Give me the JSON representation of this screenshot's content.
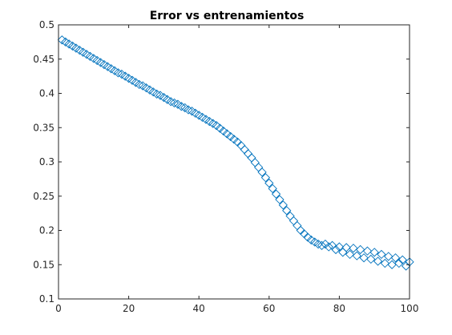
{
  "chart_data": {
    "type": "scatter",
    "title": "Error vs entrenamientos",
    "xlabel": "",
    "ylabel": "",
    "xlim": [
      0,
      100
    ],
    "ylim": [
      0.1,
      0.5
    ],
    "xticks": [
      "0",
      "20",
      "40",
      "60",
      "80",
      "100"
    ],
    "yticks": [
      "0.1",
      "0.15",
      "0.2",
      "0.25",
      "0.3",
      "0.35",
      "0.4",
      "0.45",
      "0.5"
    ],
    "grid": false,
    "marker": "diamond",
    "marker_color": "#0072BD",
    "series": [
      {
        "x": [
          1,
          2,
          3,
          4,
          5,
          6,
          7,
          8,
          9,
          10,
          11,
          12,
          13,
          14,
          15,
          16,
          17,
          18,
          19,
          20,
          21,
          22,
          23,
          24,
          25,
          26,
          27,
          28,
          29,
          30,
          31,
          32,
          33,
          34,
          35,
          36,
          37,
          38,
          39,
          40,
          41,
          42,
          43,
          44,
          45,
          46,
          47,
          48,
          49,
          50,
          51,
          52,
          53,
          54,
          55,
          56,
          57,
          58,
          59,
          60,
          61,
          62,
          63,
          64,
          65,
          66,
          67,
          68,
          69,
          70,
          71,
          72,
          73,
          74,
          75,
          76,
          77,
          78,
          79,
          80,
          81,
          82,
          83,
          84,
          85,
          86,
          87,
          88,
          89,
          90,
          91,
          92,
          93,
          94,
          95,
          96,
          97,
          98,
          99,
          100
        ],
        "values": [
          0.478,
          0.475,
          0.472,
          0.469,
          0.466,
          0.463,
          0.46,
          0.457,
          0.454,
          0.451,
          0.448,
          0.445,
          0.442,
          0.439,
          0.436,
          0.433,
          0.43,
          0.428,
          0.425,
          0.422,
          0.419,
          0.416,
          0.413,
          0.411,
          0.408,
          0.405,
          0.402,
          0.399,
          0.397,
          0.394,
          0.391,
          0.388,
          0.386,
          0.384,
          0.381,
          0.379,
          0.376,
          0.374,
          0.371,
          0.368,
          0.365,
          0.362,
          0.359,
          0.356,
          0.353,
          0.349,
          0.345,
          0.341,
          0.337,
          0.333,
          0.329,
          0.324,
          0.318,
          0.312,
          0.306,
          0.299,
          0.292,
          0.285,
          0.277,
          0.269,
          0.261,
          0.253,
          0.245,
          0.237,
          0.229,
          0.221,
          0.214,
          0.207,
          0.2,
          0.195,
          0.19,
          0.186,
          0.183,
          0.18,
          0.178,
          0.18,
          0.176,
          0.178,
          0.172,
          0.176,
          0.168,
          0.175,
          0.165,
          0.174,
          0.163,
          0.172,
          0.16,
          0.17,
          0.158,
          0.168,
          0.155,
          0.165,
          0.152,
          0.162,
          0.15,
          0.16,
          0.152,
          0.157,
          0.148,
          0.154
        ]
      }
    ]
  }
}
